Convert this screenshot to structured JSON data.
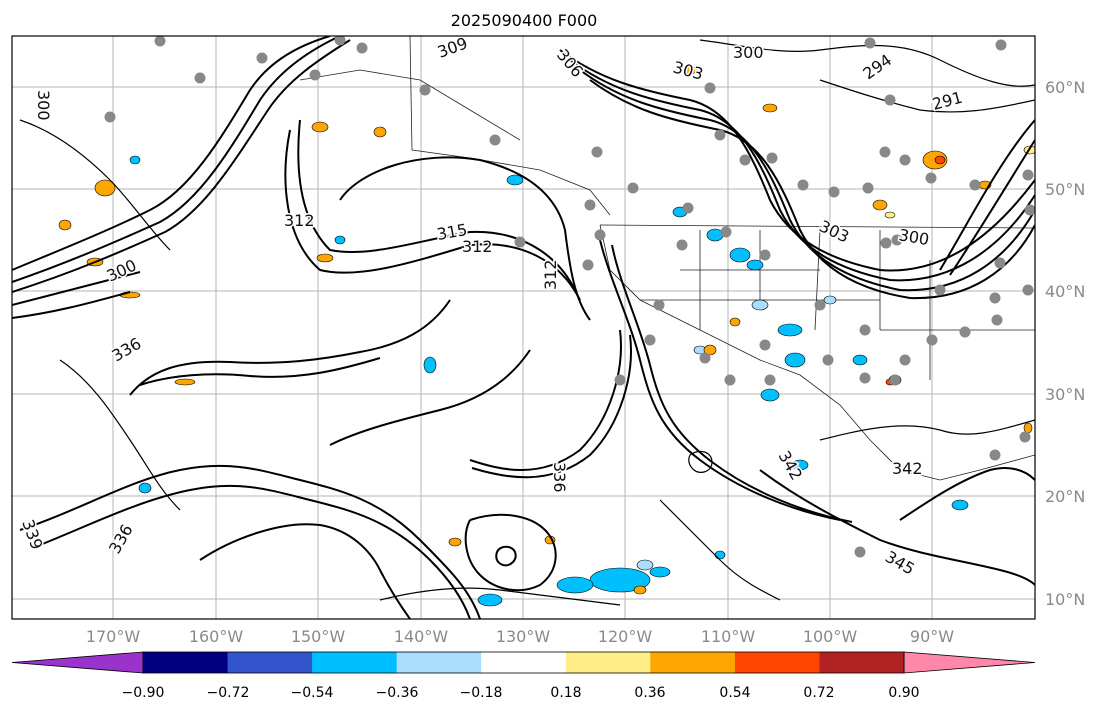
{
  "title": "2025090400 F000",
  "lat_labels": [
    "60°N",
    "50°N",
    "40°N",
    "30°N",
    "20°N",
    "10°N"
  ],
  "lon_labels": [
    "170°W",
    "160°W",
    "150°W",
    "140°W",
    "130°W",
    "120°W",
    "110°W",
    "100°W",
    "90°W"
  ],
  "contour_labels": [
    "300",
    "300",
    "303",
    "306",
    "309",
    "294",
    "291",
    "312",
    "312",
    "312",
    "315",
    "300",
    "303",
    "300",
    "336",
    "336",
    "342",
    "339",
    "336",
    "342",
    "345"
  ],
  "colorbar": {
    "colors": [
      "#9933cc",
      "#000080",
      "#3355cc",
      "#00bfff",
      "#aaddff",
      "#ffffff",
      "#ffee88",
      "#ffa500",
      "#ff4500",
      "#b22222",
      "#ff88aa"
    ],
    "tick_labels": [
      "−0.90",
      "−0.72",
      "−0.54",
      "−0.36",
      "−0.18",
      "0.18",
      "0.36",
      "0.54",
      "0.72",
      "0.90"
    ]
  },
  "fill_colors": {
    "blue": "#00bfff",
    "light_blue": "#aaddff",
    "orange": "#ffa500",
    "yellow": "#ffee88",
    "red": "#ff4500",
    "station": "#888888"
  }
}
